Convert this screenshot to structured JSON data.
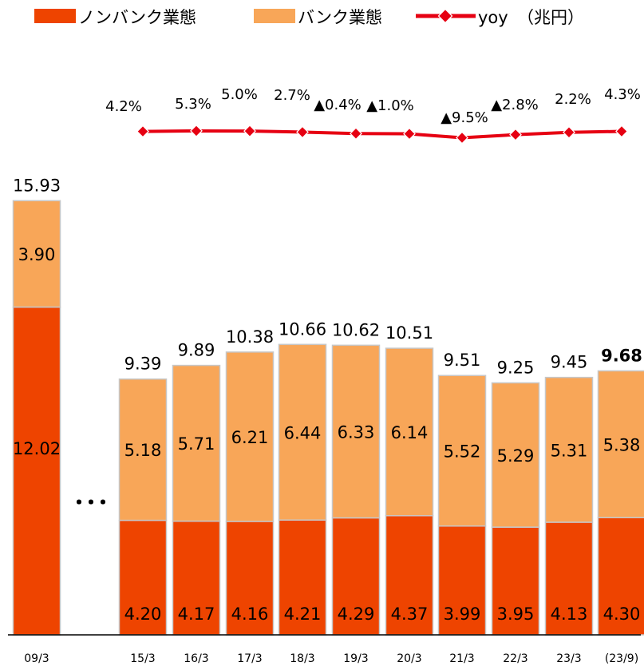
{
  "chart_data": {
    "type": "bar",
    "stacked": true,
    "categories": [
      "09/3",
      "15/3",
      "16/3",
      "17/3",
      "18/3",
      "19/3",
      "20/3",
      "21/3",
      "22/3",
      "23/3",
      "(23/9)"
    ],
    "series": [
      {
        "name": "ノンバンク業態",
        "color": "#ee4400",
        "values": [
          12.02,
          4.2,
          4.17,
          4.16,
          4.21,
          4.29,
          4.37,
          3.99,
          3.95,
          4.13,
          4.3
        ],
        "labels": [
          "12.02",
          "4.20",
          "4.17",
          "4.16",
          "4.21",
          "4.29",
          "4.37",
          "3.99",
          "3.95",
          "4.13",
          "4.30"
        ]
      },
      {
        "name": "バンク業態",
        "color": "#f8a658",
        "values": [
          3.9,
          5.18,
          5.71,
          6.21,
          6.44,
          6.33,
          6.14,
          5.52,
          5.29,
          5.31,
          5.38
        ],
        "labels": [
          "3.90",
          "5.18",
          "5.71",
          "6.21",
          "6.44",
          "6.33",
          "6.14",
          "5.52",
          "5.29",
          "5.31",
          "5.38"
        ]
      }
    ],
    "totals": [
      15.93,
      9.39,
      9.89,
      10.38,
      10.66,
      10.62,
      10.51,
      9.51,
      9.25,
      9.45,
      9.68
    ],
    "total_labels": [
      "15.93",
      "9.39",
      "9.89",
      "10.38",
      "10.66",
      "10.62",
      "10.51",
      "9.51",
      "9.25",
      "9.45",
      "9.68"
    ],
    "yoy": {
      "name": "yoy",
      "color": "#e60012",
      "categories": [
        "15/3",
        "16/3",
        "17/3",
        "18/3",
        "19/3",
        "20/3",
        "21/3",
        "22/3",
        "23/3",
        "(23/9)"
      ],
      "values": [
        4.2,
        5.3,
        5.0,
        2.7,
        -0.4,
        -1.0,
        -9.5,
        -2.8,
        2.2,
        4.3
      ],
      "labels": [
        "4.2%",
        "5.3%",
        "5.0%",
        "2.7%",
        "▲0.4%",
        "▲1.0%",
        "▲9.5%",
        "▲2.8%",
        "2.2%",
        "4.3%"
      ]
    },
    "unit": "（兆円）",
    "ellipsis": "･･･",
    "ylim": [
      0,
      16
    ]
  }
}
